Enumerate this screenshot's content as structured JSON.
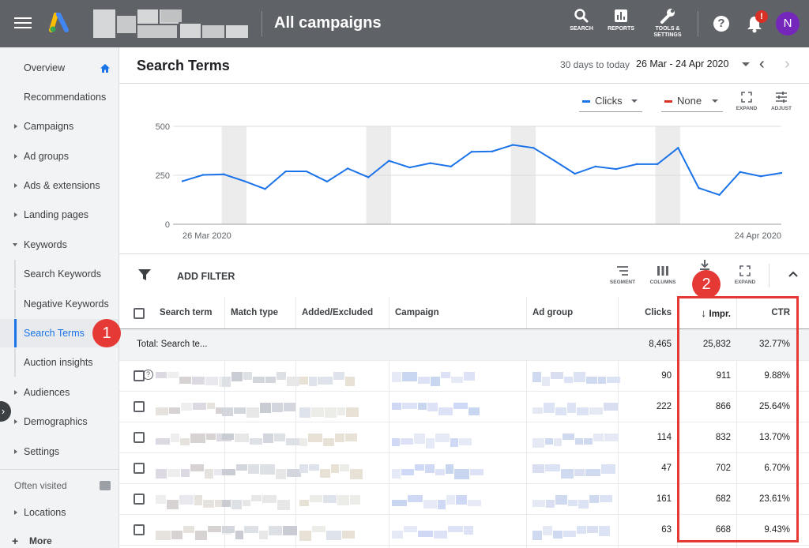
{
  "header": {
    "page_heading": "All campaigns",
    "tools": [
      {
        "label": "SEARCH",
        "icon": "search-icon"
      },
      {
        "label": "REPORTS",
        "icon": "reports-icon"
      },
      {
        "label": "TOOLS &",
        "label2": "SETTINGS",
        "icon": "wrench-icon"
      }
    ],
    "help": "?",
    "notification_badge": "!",
    "avatar_initial": "N",
    "avatar_color": "#7627bb"
  },
  "sidebar": {
    "items": [
      {
        "label": "Overview",
        "expandable": false
      },
      {
        "label": "Recommendations",
        "expandable": false
      },
      {
        "label": "Campaigns",
        "expandable": true
      },
      {
        "label": "Ad groups",
        "expandable": true
      },
      {
        "label": "Ads & extensions",
        "expandable": true
      },
      {
        "label": "Landing pages",
        "expandable": true
      },
      {
        "label": "Keywords",
        "expandable": true,
        "expanded": true
      },
      {
        "label": "Search Keywords",
        "sub": true
      },
      {
        "label": "Negative Keywords",
        "sub": true
      },
      {
        "label": "Search Terms",
        "sub": true,
        "active": true
      },
      {
        "label": "Auction insights",
        "sub": true
      },
      {
        "label": "Audiences",
        "expandable": true
      },
      {
        "label": "Demographics",
        "expandable": true
      },
      {
        "label": "Settings",
        "expandable": true
      }
    ],
    "often_visited": "Often visited",
    "extra": [
      {
        "label": "Locations",
        "expandable": true
      },
      {
        "label": "More",
        "plus": true
      }
    ]
  },
  "main": {
    "title": "Search Terms",
    "range_label": "30 days to today",
    "date_range": "26 Mar - 24 Apr 2020"
  },
  "chart": {
    "metric1": "Clicks",
    "metric1_color": "#1a73e8",
    "metric2": "None",
    "metric2_color": "#d93025",
    "expand_label": "EXPAND",
    "adjust_label": "ADJUST"
  },
  "chart_data": {
    "type": "line",
    "y_ticks": [
      "500",
      "250",
      "0"
    ],
    "ylim": [
      0,
      500
    ],
    "x_start_label": "26 Mar 2020",
    "x_end_label": "24 Apr 2020",
    "grid": true,
    "series": [
      {
        "name": "Clicks",
        "x": [
          "2020-03-26",
          "2020-03-27",
          "2020-03-28",
          "2020-03-29",
          "2020-03-30",
          "2020-03-31",
          "2020-04-01",
          "2020-04-02",
          "2020-04-03",
          "2020-04-04",
          "2020-04-05",
          "2020-04-06",
          "2020-04-07",
          "2020-04-08",
          "2020-04-09",
          "2020-04-10",
          "2020-04-11",
          "2020-04-12",
          "2020-04-13",
          "2020-04-14",
          "2020-04-15",
          "2020-04-16",
          "2020-04-17",
          "2020-04-18",
          "2020-04-19",
          "2020-04-20",
          "2020-04-21",
          "2020-04-22",
          "2020-04-23",
          "2020-04-24"
        ],
        "values": [
          220,
          252,
          255,
          220,
          180,
          270,
          270,
          218,
          285,
          240,
          324,
          290,
          312,
          295,
          370,
          372,
          405,
          390,
          325,
          258,
          295,
          282,
          307,
          307,
          390,
          185,
          150,
          267,
          245,
          262
        ]
      }
    ]
  },
  "toolbar": {
    "add_filter": "ADD FILTER",
    "segment": "SEGMENT",
    "columns": "COLUMNS",
    "expand": "EXPAND"
  },
  "table": {
    "headers": {
      "search_term": "Search term",
      "match_type": "Match type",
      "added": "Added/Excluded",
      "campaign": "Campaign",
      "ad_group": "Ad group",
      "clicks": "Clicks",
      "impr": "Impr.",
      "ctr": "CTR"
    },
    "total": {
      "label": "Total: Search te...",
      "clicks": "8,465",
      "impr": "25,832",
      "ctr": "32.77%"
    },
    "rows": [
      {
        "clicks": "90",
        "impr": "911",
        "ctr": "9.88%"
      },
      {
        "clicks": "222",
        "impr": "866",
        "ctr": "25.64%"
      },
      {
        "clicks": "114",
        "impr": "832",
        "ctr": "13.70%"
      },
      {
        "clicks": "47",
        "impr": "702",
        "ctr": "6.70%"
      },
      {
        "clicks": "161",
        "impr": "682",
        "ctr": "23.61%"
      },
      {
        "clicks": "63",
        "impr": "668",
        "ctr": "9.43%"
      }
    ]
  },
  "callouts": [
    "1",
    "2"
  ],
  "callout_color": "#e53935"
}
